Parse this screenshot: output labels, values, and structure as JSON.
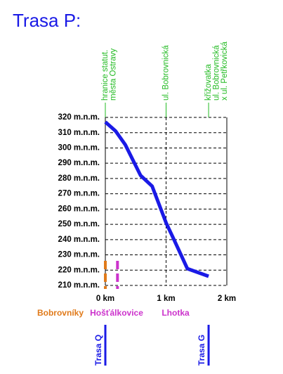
{
  "chart_data": {
    "type": "line",
    "title": "Trasa P:",
    "title_color": "#1a1ae6",
    "x": [
      0,
      0.17,
      0.33,
      0.58,
      0.77,
      1.0,
      1.13,
      1.35,
      1.7
    ],
    "values": [
      317,
      311,
      302,
      282,
      275,
      251,
      240,
      221,
      216
    ],
    "color": "#1a1ae6",
    "xlim": [
      0,
      2
    ],
    "xticks": [
      {
        "value": 0,
        "label": "0 km"
      },
      {
        "value": 1,
        "label": "1 km"
      },
      {
        "value": 2,
        "label": "2 km"
      }
    ],
    "ylim": [
      210,
      320
    ],
    "yticks": [
      {
        "value": 320,
        "label": "320 m.n.m."
      },
      {
        "value": 310,
        "label": "310 m.n.m."
      },
      {
        "value": 300,
        "label": "300 m.n.m."
      },
      {
        "value": 290,
        "label": "290 m.n.m."
      },
      {
        "value": 280,
        "label": "280 m.n.m."
      },
      {
        "value": 270,
        "label": "270 m.n.m."
      },
      {
        "value": 260,
        "label": "260 m.n.m."
      },
      {
        "value": 250,
        "label": "250 m.n.m."
      },
      {
        "value": 240,
        "label": "240 m.n.m."
      },
      {
        "value": 230,
        "label": "230 m.n.m."
      },
      {
        "value": 220,
        "label": "220 m.n.m."
      },
      {
        "value": 210,
        "label": "210 m.n.m."
      }
    ],
    "grid": true,
    "annotations": [
      {
        "x": 0,
        "lines": [
          "hranice statut.",
          "města Ostravy"
        ]
      },
      {
        "x": 1,
        "lines": [
          "ul. Bobrovnická"
        ]
      },
      {
        "x": 1.7,
        "lines": [
          "křižovatka",
          "ul. Bobrovnická",
          "x ul. Petřkovická"
        ]
      }
    ],
    "annotation_color": "#22bb22",
    "markers": [
      {
        "x": 0,
        "color": "#e07a1a"
      },
      {
        "x": 0.2,
        "color": "#cc33cc"
      }
    ],
    "regions": [
      {
        "name": "Bobrovníky",
        "color": "#e07a1a"
      },
      {
        "name": "Hošťálkovice",
        "color": "#cc33cc"
      },
      {
        "name": "Lhotka",
        "color": "#cc33cc"
      }
    ],
    "routes": [
      {
        "name": "Trasa Q",
        "x": 0
      },
      {
        "name": "Trasa G",
        "x": 1.7
      }
    ],
    "route_color": "#1a1ae6"
  }
}
